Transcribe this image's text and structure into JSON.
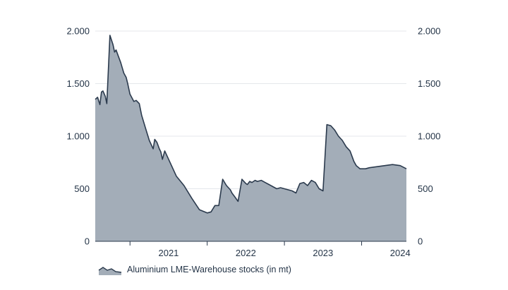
{
  "chart_data": {
    "type": "area",
    "title": "",
    "xlabel": "",
    "ylabel": "",
    "x_tick_labels": [
      "2021",
      "2022",
      "2023",
      "2024"
    ],
    "y_ticks": [
      0,
      500,
      1000,
      1500,
      2000
    ],
    "y_tick_labels": [
      "0",
      "500",
      "1.000",
      "1.500",
      "2.000"
    ],
    "xlim": [
      2020.55,
      2024.58
    ],
    "ylim": [
      0,
      2000
    ],
    "grid": "horizontal",
    "secondary_axis": "mirrored-right",
    "legend_position": "bottom-left",
    "colors": {
      "fill": "#a3adb8",
      "line": "#2b3a4d",
      "text": "#243447",
      "grid": "#e4e7eb"
    },
    "series": [
      {
        "name": "Aluminium LME-Warehouse stocks (in mt)",
        "x": [
          2020.55,
          2020.58,
          2020.61,
          2020.63,
          2020.65,
          2020.68,
          2020.7,
          2020.74,
          2020.78,
          2020.8,
          2020.82,
          2020.85,
          2020.88,
          2020.9,
          2020.92,
          2020.95,
          2020.97,
          2021.0,
          2021.05,
          2021.08,
          2021.12,
          2021.15,
          2021.2,
          2021.25,
          2021.3,
          2021.32,
          2021.35,
          2021.38,
          2021.4,
          2021.42,
          2021.45,
          2021.5,
          2021.6,
          2021.7,
          2021.8,
          2021.9,
          2022.0,
          2022.05,
          2022.1,
          2022.15,
          2022.2,
          2022.25,
          2022.3,
          2022.32,
          2022.36,
          2022.4,
          2022.45,
          2022.5,
          2022.52,
          2022.55,
          2022.58,
          2022.62,
          2022.65,
          2022.7,
          2022.75,
          2022.8,
          2022.85,
          2022.9,
          2022.95,
          2023.0,
          2023.05,
          2023.1,
          2023.15,
          2023.2,
          2023.25,
          2023.3,
          2023.35,
          2023.4,
          2023.45,
          2023.5,
          2023.55,
          2023.6,
          2023.65,
          2023.7,
          2023.75,
          2023.8,
          2023.85,
          2023.88,
          2023.9,
          2023.93,
          2023.98,
          2024.05,
          2024.1,
          2024.2,
          2024.3,
          2024.4,
          2024.5,
          2024.58
        ],
        "values": [
          1350,
          1370,
          1300,
          1420,
          1430,
          1380,
          1310,
          1960,
          1870,
          1800,
          1820,
          1760,
          1700,
          1650,
          1600,
          1560,
          1500,
          1400,
          1330,
          1340,
          1310,
          1200,
          1080,
          960,
          880,
          970,
          940,
          880,
          850,
          780,
          860,
          780,
          620,
          530,
          410,
          300,
          270,
          280,
          340,
          340,
          590,
          530,
          490,
          460,
          420,
          380,
          590,
          550,
          540,
          570,
          560,
          580,
          570,
          580,
          560,
          540,
          520,
          500,
          510,
          500,
          490,
          480,
          460,
          550,
          560,
          530,
          580,
          560,
          500,
          480,
          1110,
          1100,
          1060,
          1000,
          960,
          900,
          860,
          800,
          760,
          720,
          690,
          690,
          700,
          710,
          720,
          730,
          720,
          690
        ]
      }
    ]
  }
}
